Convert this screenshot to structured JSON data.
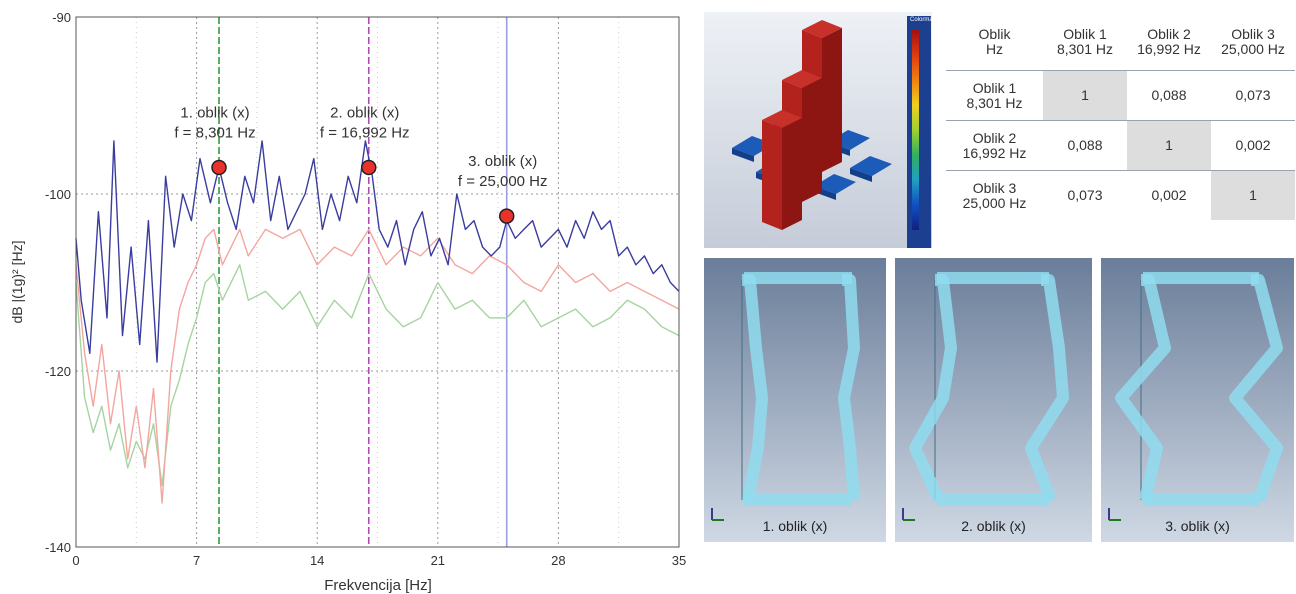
{
  "chart_data": {
    "type": "line",
    "xlabel": "Frekvencija [Hz]",
    "ylabel": "dB |(1g)² [Hz]",
    "xlim": [
      0,
      35
    ],
    "ylim": [
      -140,
      -90
    ],
    "x_ticks": [
      "0",
      "7",
      "14",
      "21",
      "28",
      "35"
    ],
    "y_ticks": [
      "-140",
      "-120",
      "-100",
      "-90"
    ],
    "grid": true,
    "series": [
      {
        "color": "#3a3d9e",
        "x": [
          0,
          0.3,
          0.8,
          1.3,
          1.8,
          2.2,
          2.7,
          3.2,
          3.7,
          4.2,
          4.7,
          5.2,
          5.7,
          6.2,
          6.7,
          7.2,
          7.8,
          8.3,
          8.8,
          9.3,
          9.8,
          10.3,
          10.8,
          11.3,
          11.8,
          12.3,
          12.8,
          13.3,
          13.8,
          14.3,
          14.8,
          15.3,
          15.8,
          16.3,
          16.8,
          17.2,
          17.6,
          18.1,
          18.6,
          19.1,
          19.6,
          20.1,
          20.6,
          21.1,
          21.6,
          22.1,
          22.6,
          23.1,
          23.6,
          24.1,
          24.6,
          25.0,
          25.5,
          26,
          26.5,
          27,
          27.5,
          28,
          28.5,
          29,
          29.5,
          30,
          30.5,
          31,
          31.5,
          32,
          32.5,
          33,
          33.5,
          34,
          34.5,
          35
        ],
        "y": [
          -105,
          -112,
          -118,
          -102,
          -114,
          -97,
          -116,
          -106,
          -117,
          -103,
          -119,
          -99,
          -106,
          -100,
          -103,
          -98,
          -101,
          -98.5,
          -101,
          -104,
          -99,
          -101,
          -97,
          -103,
          -99,
          -104,
          -102,
          -100,
          -98,
          -104,
          -100,
          -103,
          -99,
          -101,
          -97,
          -99,
          -104,
          -106,
          -103,
          -108,
          -104,
          -102,
          -107,
          -105,
          -108,
          -100,
          -104,
          -103,
          -106,
          -107,
          -106,
          -103,
          -105,
          -104,
          -103,
          -106,
          -105,
          -104,
          -106,
          -103,
          -105,
          -102,
          -104,
          -103,
          -107,
          -106,
          -108,
          -107,
          -109,
          -108,
          -110,
          -111
        ]
      },
      {
        "color": "#f3a6a0",
        "x": [
          0,
          0.5,
          1,
          1.5,
          2,
          2.5,
          3,
          3.5,
          4,
          4.5,
          5,
          5.5,
          6,
          6.5,
          7,
          7.5,
          8,
          8.5,
          9,
          9.5,
          10,
          11,
          12,
          13,
          14,
          15,
          16,
          17,
          18,
          19,
          20,
          21,
          22,
          23,
          24,
          25,
          26,
          27,
          28,
          29,
          30,
          31,
          32,
          33,
          34,
          35
        ],
        "y": [
          -108,
          -118,
          -124,
          -117,
          -126,
          -120,
          -130,
          -124,
          -131,
          -122,
          -135,
          -120,
          -113,
          -110,
          -108,
          -105,
          -104,
          -108,
          -106,
          -104,
          -107,
          -104,
          -105,
          -104,
          -108,
          -106,
          -107,
          -104,
          -108,
          -106,
          -107,
          -105,
          -108,
          -109,
          -107,
          -108,
          -110,
          -111,
          -108,
          -110,
          -109,
          -111,
          -110,
          -111,
          -112,
          -113
        ]
      },
      {
        "color": "#a6d4a0",
        "x": [
          0,
          0.5,
          1,
          1.5,
          2,
          2.5,
          3,
          3.5,
          4,
          4.5,
          5,
          5.5,
          6,
          6.5,
          7,
          7.5,
          8,
          8.5,
          9,
          9.5,
          10,
          11,
          12,
          13,
          14,
          15,
          16,
          17,
          18,
          19,
          20,
          21,
          22,
          23,
          24,
          25,
          26,
          27,
          28,
          29,
          30,
          31,
          32,
          33,
          34,
          35
        ],
        "y": [
          -110,
          -123,
          -127,
          -124,
          -129,
          -126,
          -131,
          -128,
          -130,
          -126,
          -133,
          -124,
          -121,
          -117,
          -114,
          -110,
          -109,
          -112,
          -110,
          -108,
          -112,
          -111,
          -113,
          -111,
          -115,
          -112,
          -114,
          -109,
          -113,
          -115,
          -114,
          -110,
          -113,
          -112,
          -114,
          -114,
          -112,
          -115,
          -114,
          -113,
          -115,
          -114,
          -112,
          -113,
          -115,
          -116
        ]
      }
    ],
    "vertical_lines": [
      {
        "x": 8.301,
        "color": "#2e9e3a",
        "style": "dashed"
      },
      {
        "x": 16.992,
        "color": "#b04bb5",
        "style": "dashed"
      },
      {
        "x": 25.0,
        "color": "#9a9fe0",
        "style": "solid"
      }
    ],
    "peaks": [
      {
        "x": 8.301,
        "y": -98.5,
        "label": "1. oblik (x)",
        "label2": "f = 8,301 Hz"
      },
      {
        "x": 16.992,
        "y": -98.5,
        "label": "2. oblik (x)",
        "label2": "f = 16,992 Hz"
      },
      {
        "x": 25.0,
        "y": -102.5,
        "label": "3. oblik (x)",
        "label2": "f = 25,000 Hz"
      }
    ]
  },
  "mac_panel": {
    "colorbar_title": "Colormap",
    "bar_heights": [
      [
        1,
        0.088,
        0.073
      ],
      [
        0.088,
        1,
        0.002
      ],
      [
        0.073,
        0.002,
        1
      ]
    ]
  },
  "mac_table": {
    "header": [
      "Oblik",
      "Hz",
      "Oblik 1",
      "8,301 Hz",
      "Oblik 2",
      "16,992 Hz",
      "Oblik 3",
      "25,000 Hz"
    ],
    "rows": [
      {
        "label1": "Oblik 1",
        "label2": "8,301 Hz",
        "v": [
          "1",
          "0,088",
          "0,073"
        ]
      },
      {
        "label1": "Oblik 2",
        "label2": "16,992 Hz",
        "v": [
          "0,088",
          "1",
          "0,002"
        ]
      },
      {
        "label1": "Oblik 3",
        "label2": "25,000 Hz",
        "v": [
          "0,073",
          "0,002",
          "1"
        ]
      }
    ]
  },
  "mode_shapes": [
    {
      "label": "1. oblik (x)"
    },
    {
      "label": "2. oblik (x)"
    },
    {
      "label": "3. oblik (x)"
    }
  ]
}
